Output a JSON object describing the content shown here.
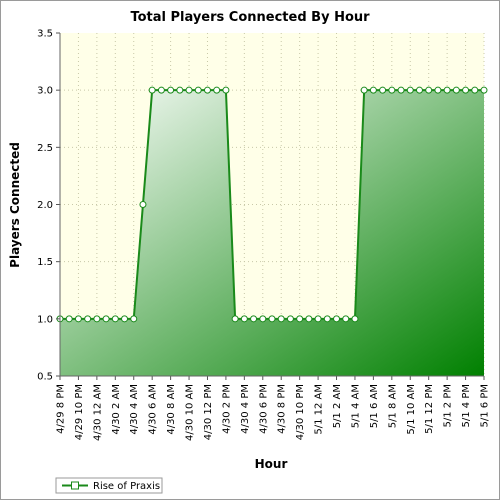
{
  "chart_data": {
    "type": "area",
    "title": "Total Players Connected By Hour",
    "xlabel": "Hour",
    "ylabel": "Players Connected",
    "ylim": [
      0.5,
      3.5
    ],
    "yticks": [
      "0.5",
      "1.0",
      "1.5",
      "2.0",
      "2.5",
      "3.0",
      "3.5"
    ],
    "grid": true,
    "legend_position": "bottom-left",
    "colors": {
      "plot_bg": "#ffffe8",
      "line": "#1a8a1a",
      "fill_light": "#ffffff",
      "fill_dark": "#008000",
      "grid": "#c8c8a8"
    },
    "x": [
      "4/29 8 PM",
      "4/29 9 PM",
      "4/29 10 PM",
      "4/29 11 PM",
      "4/30 12 AM",
      "4/30 1 AM",
      "4/30 2 AM",
      "4/30 3 AM",
      "4/30 4 AM",
      "4/30 5 AM",
      "4/30 6 AM",
      "4/30 7 AM",
      "4/30 8 AM",
      "4/30 9 AM",
      "4/30 10 AM",
      "4/30 11 AM",
      "4/30 12 PM",
      "4/30 1 PM",
      "4/30 2 PM",
      "4/30 3 PM",
      "4/30 4 PM",
      "4/30 5 PM",
      "4/30 6 PM",
      "4/30 7 PM",
      "4/30 8 PM",
      "4/30 9 PM",
      "4/30 10 PM",
      "4/30 11 PM",
      "5/1 12 AM",
      "5/1 1 AM",
      "5/1 2 AM",
      "5/1 3 AM",
      "5/1 4 AM",
      "5/1 5 AM",
      "5/1 6 AM",
      "5/1 7 AM",
      "5/1 8 AM",
      "5/1 9 AM",
      "5/1 10 AM",
      "5/1 11 AM",
      "5/1 12 PM",
      "5/1 1 PM",
      "5/1 2 PM",
      "5/1 3 PM",
      "5/1 4 PM",
      "5/1 5 PM",
      "5/1 6 PM"
    ],
    "xtick_labels": [
      "4/29 8 PM",
      "4/29 10 PM",
      "4/30 12 AM",
      "4/30 2 AM",
      "4/30 4 AM",
      "4/30 6 AM",
      "4/30 8 AM",
      "4/30 10 AM",
      "4/30 12 PM",
      "4/30 2 PM",
      "4/30 4 PM",
      "4/30 6 PM",
      "4/30 8 PM",
      "4/30 10 PM",
      "5/1 12 AM",
      "5/1 2 AM",
      "5/1 4 AM",
      "5/1 6 AM",
      "5/1 8 AM",
      "5/1 10 AM",
      "5/1 12 PM",
      "5/1 2 PM",
      "5/1 4 PM",
      "5/1 6 PM"
    ],
    "series": [
      {
        "name": "Rise of Praxis",
        "values": [
          1,
          1,
          1,
          1,
          1,
          1,
          1,
          1,
          1,
          2,
          3,
          3,
          3,
          3,
          3,
          3,
          3,
          3,
          3,
          1,
          1,
          1,
          1,
          1,
          1,
          1,
          1,
          1,
          1,
          1,
          1,
          1,
          1,
          3,
          3,
          3,
          3,
          3,
          3,
          3,
          3,
          3,
          3,
          3,
          3,
          3,
          3
        ]
      }
    ]
  }
}
